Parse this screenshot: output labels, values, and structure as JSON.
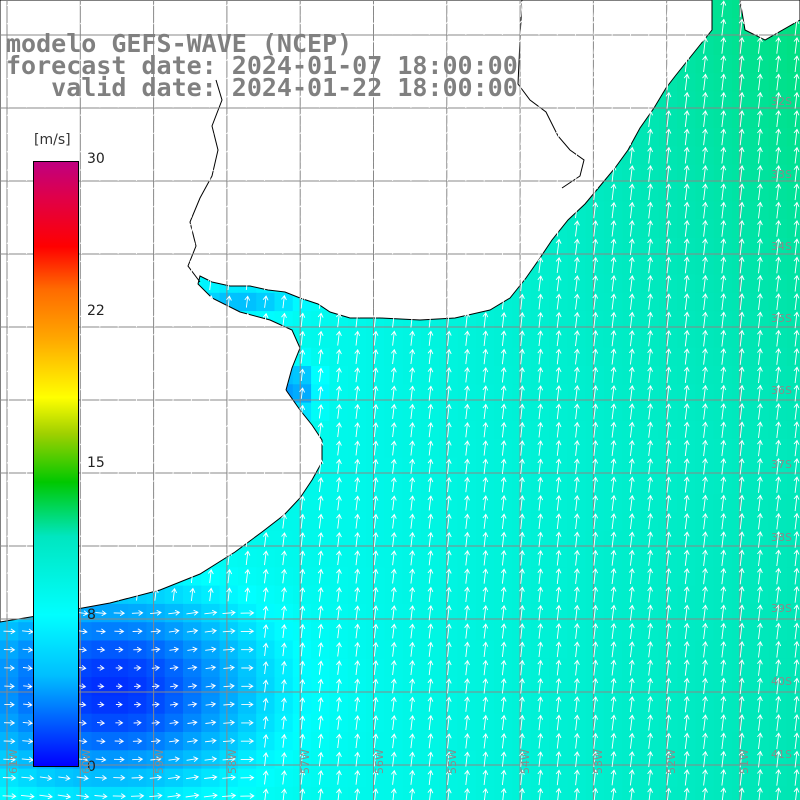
{
  "header": {
    "line1": "modelo GEFS-WAVE (NCEP)",
    "line2": "forecast date: 2024-01-07 18:00:00",
    "line3": "   valid date: 2024-01-22 18:00:00"
  },
  "colorbar": {
    "unit": "[m/s]",
    "ticks": [
      {
        "label": "30",
        "value": 30
      },
      {
        "label": "22",
        "value": 22
      },
      {
        "label": "15",
        "value": 15
      },
      {
        "label": "8",
        "value": 8
      },
      {
        "label": "0",
        "value": 0
      }
    ],
    "stops": [
      "#0000ff",
      "#00bfff",
      "#00ffff",
      "#00e6c0",
      "#00c800",
      "#9fd000",
      "#ffff00",
      "#ffa500",
      "#ff6a00",
      "#ff0000",
      "#e00048",
      "#c00080"
    ]
  },
  "map": {
    "land_color": "#ffffff",
    "grid_color": "#888888",
    "arrow_color": "#ffffff",
    "lat_labels": [
      "32S",
      "33S",
      "34S",
      "35S",
      "36S",
      "37S",
      "38S",
      "39S",
      "40S",
      "41S"
    ],
    "lon_labels": [
      "61W",
      "60W",
      "59W",
      "58W",
      "57W",
      "56W",
      "55W",
      "54W",
      "53W",
      "52W",
      "51W"
    ]
  }
}
